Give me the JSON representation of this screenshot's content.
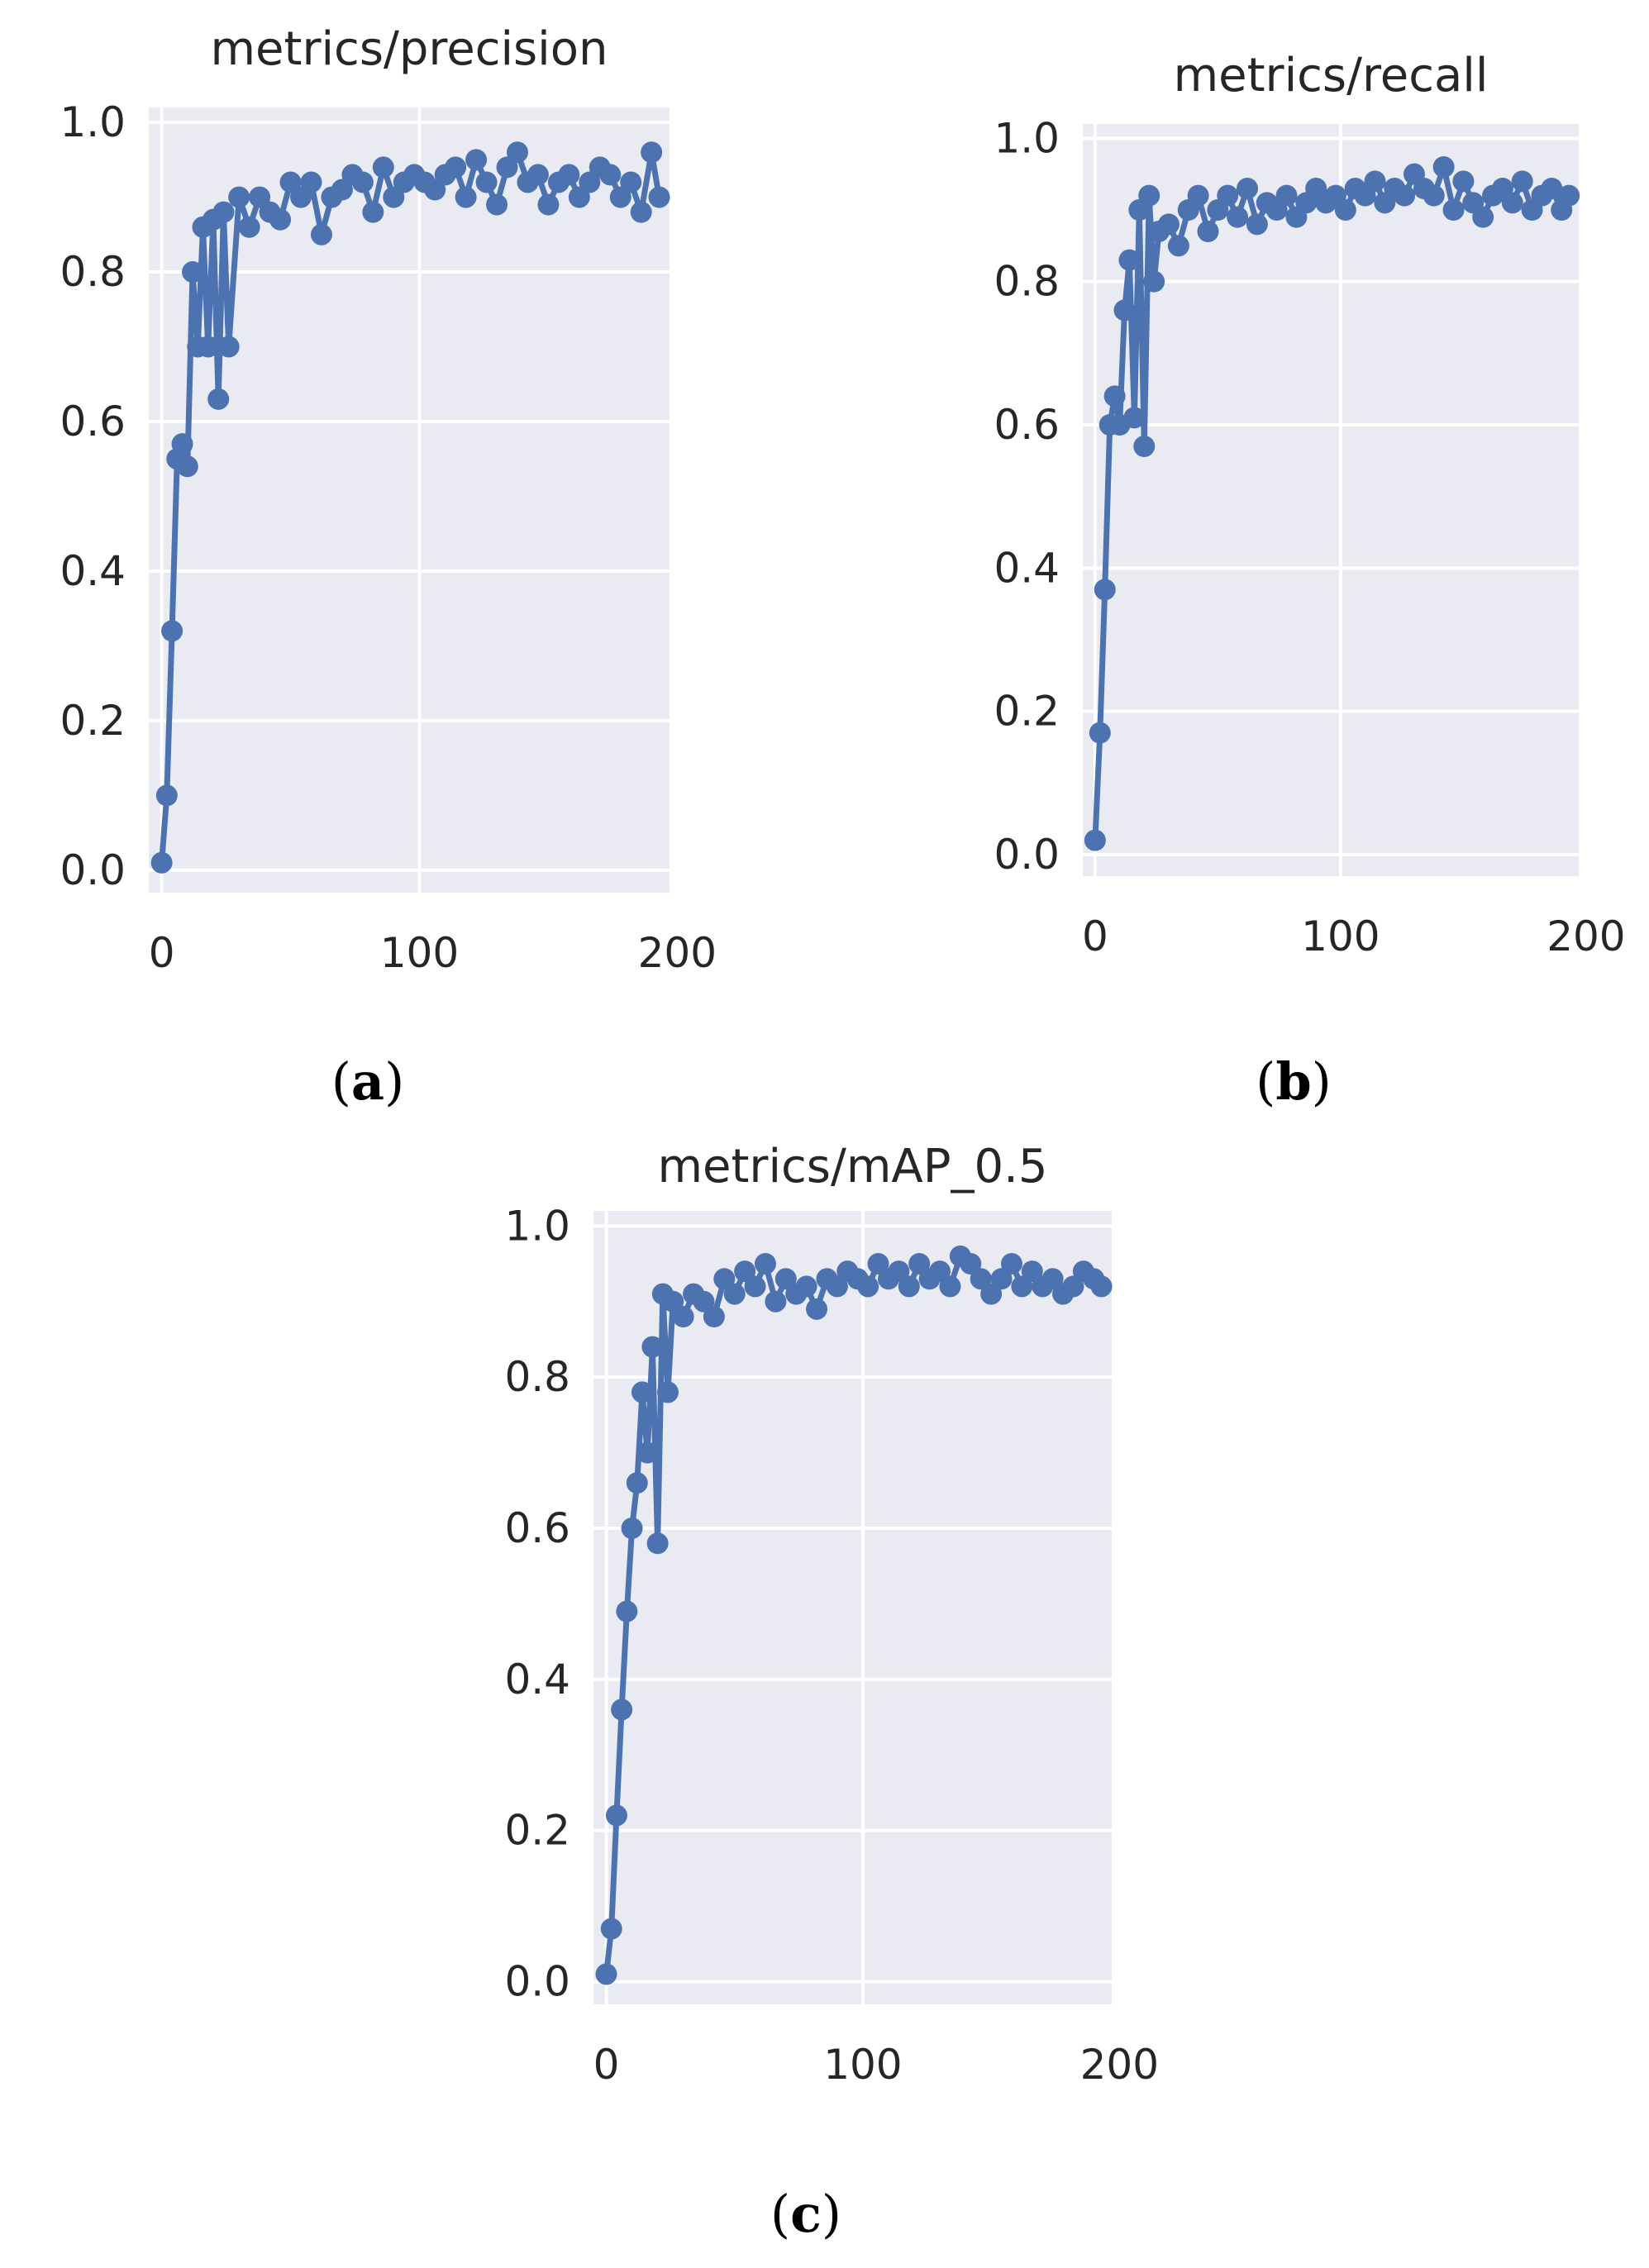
{
  "panels": [
    {
      "label": "a"
    },
    {
      "label": "b"
    },
    {
      "label": "c"
    }
  ],
  "colors": {
    "series": "#4c72b0",
    "plot_background": "#eaeaf2",
    "grid": "#ffffff",
    "text": "#262626"
  },
  "chart_data": [
    {
      "type": "line",
      "title": "metrics/precision",
      "xlabel": "",
      "ylabel": "",
      "xlim": [
        -5,
        197
      ],
      "ylim": [
        -0.03,
        1.02
      ],
      "xticks": [
        0,
        100,
        200
      ],
      "yticks": [
        0.0,
        0.2,
        0.4,
        0.6,
        0.8,
        1.0
      ],
      "xtick_labels": [
        "0",
        "100",
        "200"
      ],
      "ytick_labels": [
        "0.0",
        "0.2",
        "0.4",
        "0.6",
        "0.8",
        "1.0"
      ],
      "grid": true,
      "legend": "none",
      "series": [
        {
          "x": [
            0,
            2,
            4,
            6,
            8,
            10,
            12,
            14,
            16,
            18,
            20,
            22,
            24,
            26,
            30,
            34,
            38,
            42,
            46,
            50,
            54,
            58,
            62,
            66,
            70,
            74,
            78,
            82,
            86,
            90,
            94,
            98,
            102,
            106,
            110,
            114,
            118,
            122,
            126,
            130,
            134,
            138,
            142,
            146,
            150,
            154,
            158,
            162,
            166,
            170,
            174,
            178,
            182,
            186,
            190,
            193
          ],
          "y": [
            0.01,
            0.1,
            0.32,
            0.55,
            0.57,
            0.54,
            0.8,
            0.7,
            0.86,
            0.7,
            0.87,
            0.63,
            0.88,
            0.7,
            0.9,
            0.86,
            0.9,
            0.88,
            0.87,
            0.92,
            0.9,
            0.92,
            0.85,
            0.9,
            0.91,
            0.93,
            0.92,
            0.88,
            0.94,
            0.9,
            0.92,
            0.93,
            0.92,
            0.91,
            0.93,
            0.94,
            0.9,
            0.95,
            0.92,
            0.89,
            0.94,
            0.96,
            0.92,
            0.93,
            0.89,
            0.92,
            0.93,
            0.9,
            0.92,
            0.94,
            0.93,
            0.9,
            0.92,
            0.88,
            0.96,
            0.9
          ]
        }
      ]
    },
    {
      "type": "line",
      "title": "metrics/recall",
      "xlabel": "",
      "ylabel": "",
      "xlim": [
        -5,
        197
      ],
      "ylim": [
        -0.03,
        1.02
      ],
      "xticks": [
        0,
        100,
        200
      ],
      "yticks": [
        0.0,
        0.2,
        0.4,
        0.6,
        0.8,
        1.0
      ],
      "xtick_labels": [
        "0",
        "100",
        "200"
      ],
      "ytick_labels": [
        "0.0",
        "0.2",
        "0.4",
        "0.6",
        "0.8",
        "1.0"
      ],
      "grid": true,
      "legend": "none",
      "series": [
        {
          "x": [
            0,
            2,
            4,
            6,
            8,
            10,
            12,
            14,
            16,
            18,
            20,
            22,
            24,
            26,
            30,
            34,
            38,
            42,
            46,
            50,
            54,
            58,
            62,
            66,
            70,
            74,
            78,
            82,
            86,
            90,
            94,
            98,
            102,
            106,
            110,
            114,
            118,
            122,
            126,
            130,
            134,
            138,
            142,
            146,
            150,
            154,
            158,
            162,
            166,
            170,
            174,
            178,
            182,
            186,
            190,
            193
          ],
          "y": [
            0.02,
            0.17,
            0.37,
            0.6,
            0.64,
            0.6,
            0.76,
            0.83,
            0.61,
            0.9,
            0.57,
            0.92,
            0.8,
            0.87,
            0.88,
            0.85,
            0.9,
            0.92,
            0.87,
            0.9,
            0.92,
            0.89,
            0.93,
            0.88,
            0.91,
            0.9,
            0.92,
            0.89,
            0.91,
            0.93,
            0.91,
            0.92,
            0.9,
            0.93,
            0.92,
            0.94,
            0.91,
            0.93,
            0.92,
            0.95,
            0.93,
            0.92,
            0.96,
            0.9,
            0.94,
            0.91,
            0.89,
            0.92,
            0.93,
            0.91,
            0.94,
            0.9,
            0.92,
            0.93,
            0.9,
            0.92
          ]
        }
      ]
    },
    {
      "type": "line",
      "title": "metrics/mAP_0.5",
      "xlabel": "",
      "ylabel": "",
      "xlim": [
        -5,
        197
      ],
      "ylim": [
        -0.03,
        1.02
      ],
      "xticks": [
        0,
        100,
        200
      ],
      "yticks": [
        0.0,
        0.2,
        0.4,
        0.6,
        0.8,
        1.0
      ],
      "xtick_labels": [
        "0",
        "100",
        "200"
      ],
      "ytick_labels": [
        "0.0",
        "0.2",
        "0.4",
        "0.6",
        "0.8",
        "1.0"
      ],
      "grid": true,
      "legend": "none",
      "series": [
        {
          "x": [
            0,
            2,
            4,
            6,
            8,
            10,
            12,
            14,
            16,
            18,
            20,
            22,
            24,
            26,
            30,
            34,
            38,
            42,
            46,
            50,
            54,
            58,
            62,
            66,
            70,
            74,
            78,
            82,
            86,
            90,
            94,
            98,
            102,
            106,
            110,
            114,
            118,
            122,
            126,
            130,
            134,
            138,
            142,
            146,
            150,
            154,
            158,
            162,
            166,
            170,
            174,
            178,
            182,
            186,
            190,
            193
          ],
          "y": [
            0.01,
            0.07,
            0.22,
            0.36,
            0.49,
            0.6,
            0.66,
            0.78,
            0.7,
            0.84,
            0.58,
            0.91,
            0.78,
            0.9,
            0.88,
            0.91,
            0.9,
            0.88,
            0.93,
            0.91,
            0.94,
            0.92,
            0.95,
            0.9,
            0.93,
            0.91,
            0.92,
            0.89,
            0.93,
            0.92,
            0.94,
            0.93,
            0.92,
            0.95,
            0.93,
            0.94,
            0.92,
            0.95,
            0.93,
            0.94,
            0.92,
            0.96,
            0.95,
            0.93,
            0.91,
            0.93,
            0.95,
            0.92,
            0.94,
            0.92,
            0.93,
            0.91,
            0.92,
            0.94,
            0.93,
            0.92
          ]
        }
      ]
    }
  ]
}
